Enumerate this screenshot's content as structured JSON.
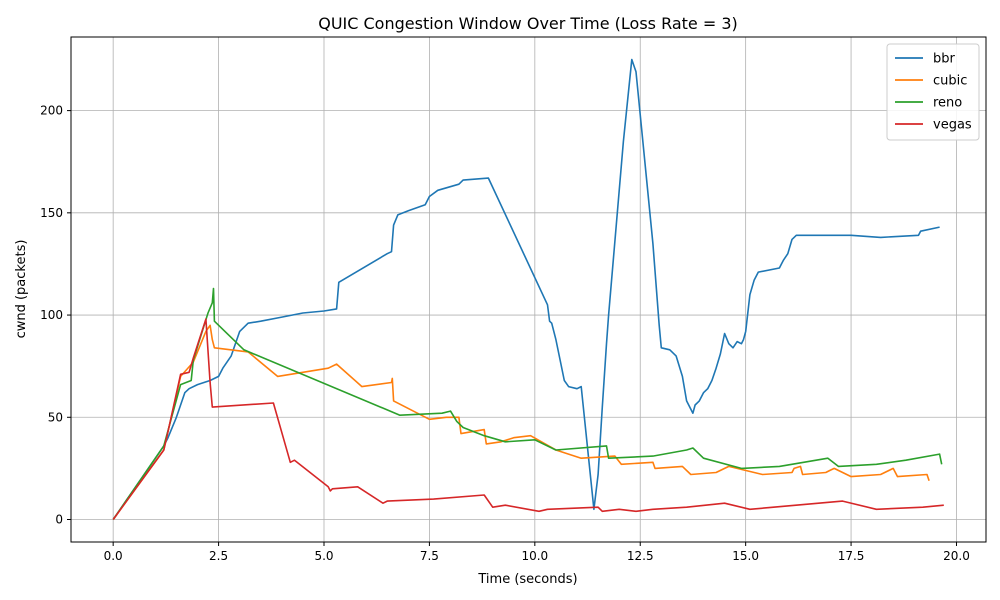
{
  "chart_data": {
    "type": "line",
    "title": "QUIC Congestion Window Over Time (Loss Rate = 3)",
    "xlabel": "Time (seconds)",
    "ylabel": "cwnd (packets)",
    "xlim": [
      -1.0,
      20.7
    ],
    "ylim": [
      -11,
      236
    ],
    "xticks": [
      0.0,
      2.5,
      5.0,
      7.5,
      10.0,
      12.5,
      15.0,
      17.5,
      20.0
    ],
    "xtick_labels": [
      "0.0",
      "2.5",
      "5.0",
      "7.5",
      "10.0",
      "12.5",
      "15.0",
      "17.5",
      "20.0"
    ],
    "yticks": [
      0,
      50,
      100,
      150,
      200
    ],
    "ytick_labels": [
      "0",
      "50",
      "100",
      "150",
      "200"
    ],
    "grid": true,
    "legend": "top-right",
    "series": [
      {
        "name": "bbr",
        "color": "#1f77b4",
        "points": [
          [
            0,
            0
          ],
          [
            1.2,
            36
          ],
          [
            1.3,
            40
          ],
          [
            1.5,
            50
          ],
          [
            1.7,
            62
          ],
          [
            1.8,
            64
          ],
          [
            2.0,
            66
          ],
          [
            2.3,
            68
          ],
          [
            2.5,
            70
          ],
          [
            2.6,
            74
          ],
          [
            2.8,
            80
          ],
          [
            2.9,
            86
          ],
          [
            3.0,
            92
          ],
          [
            3.2,
            96
          ],
          [
            3.5,
            97
          ],
          [
            4.0,
            99
          ],
          [
            4.5,
            101
          ],
          [
            5.0,
            102
          ],
          [
            5.3,
            103
          ],
          [
            5.35,
            116
          ],
          [
            6.5,
            130
          ],
          [
            6.6,
            131
          ],
          [
            6.65,
            144
          ],
          [
            6.75,
            149
          ],
          [
            7.0,
            151
          ],
          [
            7.4,
            154
          ],
          [
            7.5,
            158
          ],
          [
            7.7,
            161
          ],
          [
            8.2,
            164
          ],
          [
            8.3,
            166
          ],
          [
            8.9,
            167
          ],
          [
            10.3,
            105
          ],
          [
            10.35,
            97
          ],
          [
            10.4,
            96
          ],
          [
            10.5,
            88
          ],
          [
            10.6,
            78
          ],
          [
            10.7,
            68
          ],
          [
            10.8,
            65
          ],
          [
            11.0,
            64
          ],
          [
            11.1,
            65
          ],
          [
            11.4,
            5
          ],
          [
            11.5,
            22
          ],
          [
            11.6,
            55
          ],
          [
            11.7,
            86
          ],
          [
            11.75,
            100
          ],
          [
            12.1,
            185
          ],
          [
            12.3,
            225
          ],
          [
            12.4,
            219
          ],
          [
            12.8,
            135
          ],
          [
            12.95,
            95
          ],
          [
            13.0,
            84
          ],
          [
            13.2,
            83
          ],
          [
            13.35,
            80
          ],
          [
            13.5,
            70
          ],
          [
            13.6,
            58
          ],
          [
            13.7,
            54
          ],
          [
            13.75,
            52
          ],
          [
            13.8,
            56
          ],
          [
            13.9,
            58
          ],
          [
            14.0,
            62
          ],
          [
            14.1,
            64
          ],
          [
            14.2,
            68
          ],
          [
            14.3,
            74
          ],
          [
            14.4,
            81
          ],
          [
            14.5,
            91
          ],
          [
            14.6,
            86
          ],
          [
            14.7,
            84
          ],
          [
            14.8,
            87
          ],
          [
            14.9,
            86
          ],
          [
            14.95,
            88
          ],
          [
            15.0,
            92
          ],
          [
            15.1,
            110
          ],
          [
            15.2,
            117
          ],
          [
            15.3,
            121
          ],
          [
            15.8,
            123
          ],
          [
            15.85,
            125
          ],
          [
            15.9,
            127
          ],
          [
            16.0,
            130
          ],
          [
            16.1,
            137
          ],
          [
            16.2,
            139
          ],
          [
            17.5,
            139
          ],
          [
            18.2,
            138
          ],
          [
            19.1,
            139
          ],
          [
            19.15,
            141
          ],
          [
            19.6,
            143
          ]
        ]
      },
      {
        "name": "cubic",
        "color": "#ff7f0e",
        "points": [
          [
            0,
            0
          ],
          [
            1.2,
            34
          ],
          [
            1.6,
            70
          ],
          [
            1.9,
            77
          ],
          [
            2.2,
            92
          ],
          [
            2.3,
            95
          ],
          [
            2.35,
            88
          ],
          [
            2.4,
            84
          ],
          [
            3.2,
            82
          ],
          [
            3.9,
            70
          ],
          [
            4.5,
            72
          ],
          [
            5.1,
            74
          ],
          [
            5.3,
            76
          ],
          [
            5.9,
            65
          ],
          [
            6.6,
            67
          ],
          [
            6.62,
            69
          ],
          [
            6.65,
            58
          ],
          [
            7.5,
            49
          ],
          [
            7.9,
            50
          ],
          [
            8.2,
            50
          ],
          [
            8.25,
            42
          ],
          [
            8.8,
            44
          ],
          [
            8.85,
            37
          ],
          [
            9.2,
            38
          ],
          [
            9.5,
            40
          ],
          [
            9.9,
            41
          ],
          [
            10.5,
            34
          ],
          [
            11.1,
            30
          ],
          [
            11.9,
            31
          ],
          [
            12.05,
            27
          ],
          [
            12.8,
            28
          ],
          [
            12.85,
            25
          ],
          [
            13.5,
            26
          ],
          [
            13.7,
            22
          ],
          [
            14.3,
            23
          ],
          [
            14.5,
            25
          ],
          [
            14.6,
            26
          ],
          [
            15.4,
            22
          ],
          [
            16.1,
            23
          ],
          [
            16.15,
            25
          ],
          [
            16.3,
            26
          ],
          [
            16.35,
            22
          ],
          [
            16.9,
            23
          ],
          [
            17.0,
            24
          ],
          [
            17.1,
            25
          ],
          [
            17.5,
            21
          ],
          [
            18.2,
            22
          ],
          [
            18.5,
            25
          ],
          [
            18.6,
            21
          ],
          [
            19.3,
            22
          ],
          [
            19.35,
            19
          ]
        ]
      },
      {
        "name": "reno",
        "color": "#2ca02c",
        "points": [
          [
            0,
            0
          ],
          [
            1.2,
            36
          ],
          [
            1.6,
            66
          ],
          [
            1.85,
            68
          ],
          [
            1.9,
            78
          ],
          [
            2.25,
            101
          ],
          [
            2.35,
            106
          ],
          [
            2.38,
            113
          ],
          [
            2.4,
            97
          ],
          [
            3.1,
            83
          ],
          [
            6.8,
            51
          ],
          [
            7.8,
            52
          ],
          [
            8.0,
            53
          ],
          [
            8.15,
            48
          ],
          [
            8.3,
            45
          ],
          [
            8.8,
            41
          ],
          [
            9.3,
            38
          ],
          [
            10.0,
            39
          ],
          [
            10.5,
            34
          ],
          [
            11.7,
            36
          ],
          [
            11.75,
            30
          ],
          [
            12.8,
            31
          ],
          [
            13.6,
            34
          ],
          [
            13.75,
            35
          ],
          [
            14.0,
            30
          ],
          [
            14.9,
            25
          ],
          [
            15.8,
            26
          ],
          [
            16.95,
            30
          ],
          [
            17.2,
            26
          ],
          [
            18.1,
            27
          ],
          [
            18.8,
            29
          ],
          [
            19.6,
            32
          ],
          [
            19.65,
            27
          ]
        ]
      },
      {
        "name": "vegas",
        "color": "#d62728",
        "points": [
          [
            0,
            0
          ],
          [
            1.2,
            34
          ],
          [
            1.3,
            43
          ],
          [
            1.6,
            71
          ],
          [
            1.8,
            72
          ],
          [
            1.9,
            79
          ],
          [
            2.2,
            98
          ],
          [
            2.3,
            67
          ],
          [
            2.35,
            55
          ],
          [
            3.8,
            57
          ],
          [
            4.2,
            28
          ],
          [
            4.3,
            29
          ],
          [
            5.1,
            16
          ],
          [
            5.15,
            14
          ],
          [
            5.2,
            15
          ],
          [
            5.8,
            16
          ],
          [
            6.4,
            8
          ],
          [
            6.5,
            9
          ],
          [
            7.6,
            10
          ],
          [
            8.8,
            12
          ],
          [
            9.0,
            6
          ],
          [
            9.3,
            7
          ],
          [
            10.1,
            4
          ],
          [
            10.3,
            5
          ],
          [
            11.5,
            6
          ],
          [
            11.6,
            4
          ],
          [
            12.0,
            5
          ],
          [
            12.4,
            4
          ],
          [
            12.8,
            5
          ],
          [
            13.6,
            6
          ],
          [
            14.5,
            8
          ],
          [
            15.1,
            5
          ],
          [
            17.3,
            9
          ],
          [
            18.1,
            5
          ],
          [
            19.2,
            6
          ],
          [
            19.7,
            7
          ]
        ]
      }
    ]
  }
}
